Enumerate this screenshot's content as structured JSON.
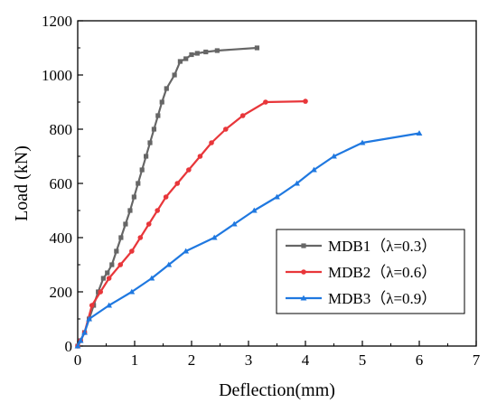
{
  "chart_data": {
    "type": "line",
    "title": "",
    "xlabel": "Deflection(mm)",
    "ylabel": "Load (kN)",
    "xlim": [
      0,
      7
    ],
    "ylim": [
      0,
      1200
    ],
    "xticks": [
      0,
      1,
      2,
      3,
      4,
      5,
      6,
      7
    ],
    "yticks": [
      0,
      200,
      400,
      600,
      800,
      1000,
      1200
    ],
    "grid": false,
    "legend_position": "bottom-right",
    "series": [
      {
        "name": "MDB1（λ=0.3）",
        "color": "#666666",
        "marker": "square",
        "x": [
          0,
          0.05,
          0.12,
          0.2,
          0.28,
          0.36,
          0.45,
          0.52,
          0.6,
          0.68,
          0.76,
          0.84,
          0.92,
          0.99,
          1.06,
          1.13,
          1.2,
          1.27,
          1.34,
          1.41,
          1.48,
          1.56,
          1.7,
          1.8,
          1.9,
          2.0,
          2.1,
          2.25,
          2.45,
          3.15
        ],
        "y": [
          0,
          20,
          50,
          100,
          150,
          200,
          250,
          270,
          300,
          350,
          400,
          450,
          500,
          550,
          600,
          650,
          700,
          750,
          800,
          850,
          900,
          950,
          1000,
          1050,
          1060,
          1075,
          1080,
          1085,
          1090,
          1100
        ]
      },
      {
        "name": "MDB2（λ=0.6）",
        "color": "#e8363a",
        "marker": "circle",
        "x": [
          0,
          0.05,
          0.12,
          0.25,
          0.4,
          0.55,
          0.75,
          0.95,
          1.1,
          1.25,
          1.4,
          1.55,
          1.75,
          1.95,
          2.15,
          2.35,
          2.6,
          2.9,
          3.3,
          4.0
        ],
        "y": [
          0,
          20,
          50,
          150,
          200,
          250,
          300,
          350,
          400,
          450,
          500,
          550,
          600,
          650,
          700,
          750,
          800,
          850,
          900,
          903
        ]
      },
      {
        "name": "MDB3（λ=0.9）",
        "color": "#1f78e0",
        "marker": "triangle",
        "x": [
          0,
          0.05,
          0.12,
          0.2,
          0.55,
          0.95,
          1.3,
          1.6,
          1.9,
          2.4,
          2.75,
          3.1,
          3.5,
          3.85,
          4.15,
          4.5,
          5.0,
          6.0
        ],
        "y": [
          0,
          20,
          50,
          100,
          150,
          200,
          250,
          300,
          350,
          400,
          450,
          500,
          550,
          600,
          650,
          700,
          750,
          785
        ]
      }
    ]
  }
}
